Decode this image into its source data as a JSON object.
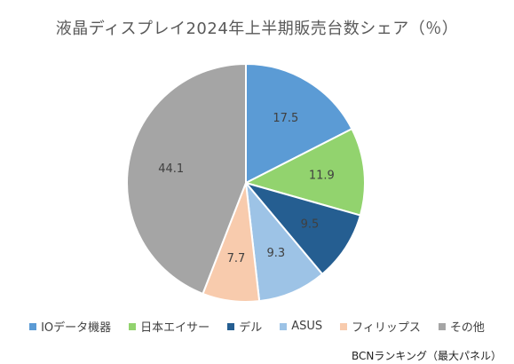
{
  "chart_data": {
    "type": "pie",
    "title": "液晶ディスプレイ2024年上半期販売台数シェア（％）",
    "slices": [
      {
        "label": "IOデータ機器",
        "value": 17.5,
        "color": "#5B9BD5"
      },
      {
        "label": "日本エイサー",
        "value": 11.9,
        "color": "#92D36E"
      },
      {
        "label": "デル",
        "value": 9.5,
        "color": "#255E91"
      },
      {
        "label": "ASUS",
        "value": 9.3,
        "color": "#9DC3E6"
      },
      {
        "label": "フィリップス",
        "value": 7.7,
        "color": "#F8CBAD"
      },
      {
        "label": "その他",
        "value": 44.1,
        "color": "#A5A5A5"
      }
    ],
    "legend_position": "bottom",
    "value_labels": [
      "17.5",
      "11.9",
      "9.5",
      "9.3",
      "7.7",
      "44.1"
    ]
  },
  "source": "BCNランキング（最大パネル）"
}
